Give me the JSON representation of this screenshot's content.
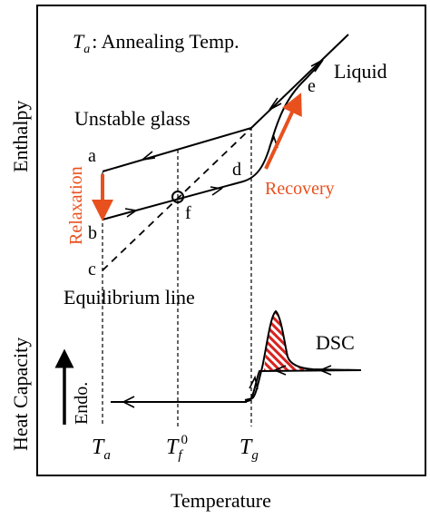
{
  "annotation": {
    "ta_symbol": "T",
    "ta_sub": "a",
    "ta_desc": ": Annealing Temp."
  },
  "labels": {
    "unstable_glass": "Unstable glass",
    "liquid": "Liquid",
    "equilibrium_line": "Equilibrium line",
    "relaxation": "Relaxation",
    "recovery": "Recovery",
    "dsc": "DSC",
    "endo": "Endo."
  },
  "points": {
    "a": "a",
    "b": "b",
    "c": "c",
    "d": "d",
    "e": "e",
    "f": "f"
  },
  "axes": {
    "ylabel_top": "Enthalpy",
    "ylabel_bottom": "Heat Capacity",
    "xlabel": "Temperature"
  },
  "ticks": [
    {
      "main": "T",
      "sub": "a",
      "sup": ""
    },
    {
      "main": "T",
      "sub": "f",
      "sup": "0"
    },
    {
      "main": "T",
      "sub": "g",
      "sup": ""
    }
  ],
  "colors": {
    "accent": "#e8501e",
    "hatch": "#d9231f",
    "ink": "#000000"
  }
}
